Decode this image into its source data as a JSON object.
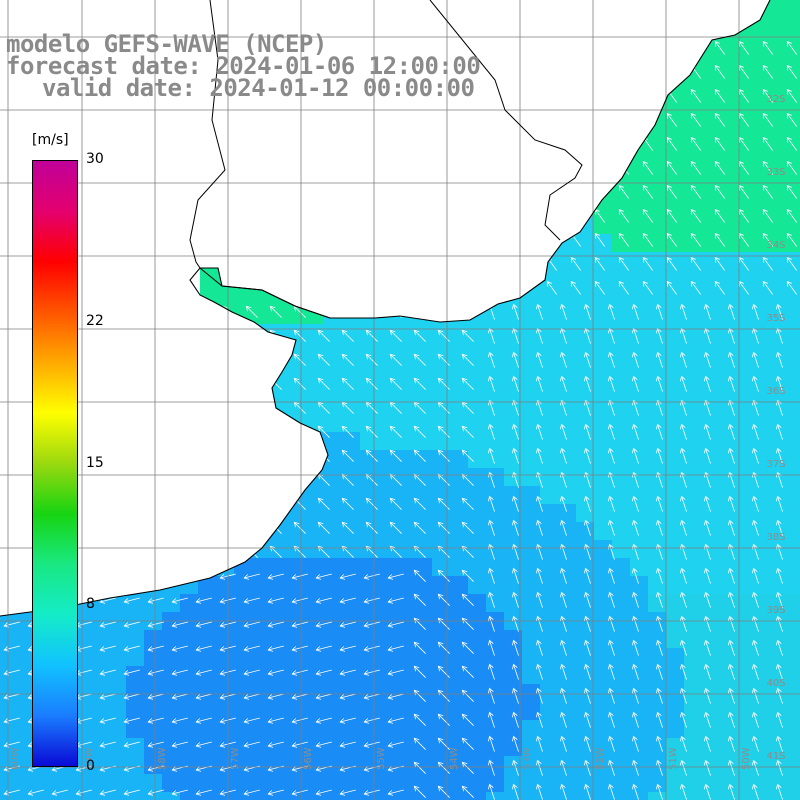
{
  "title": {
    "line1": "modelo GEFS-WAVE (NCEP)",
    "line2": "forecast date: 2024-01-06 12:00:00",
    "line3": "valid date: 2024-01-12 00:00:00"
  },
  "colorbar": {
    "units": "[m/s]",
    "ticks": [
      "30",
      "22",
      "15",
      "8",
      "0"
    ],
    "tick_values": [
      30,
      22,
      15,
      8,
      0
    ],
    "range": [
      0,
      30
    ],
    "stops": [
      "#0a0ad6",
      "#1a7dff",
      "#11c2ff",
      "#14ecc8",
      "#19e882",
      "#17d412",
      "#9ad80f",
      "#ffff00",
      "#ffaa00",
      "#ff5500",
      "#ff0000",
      "#e4006e",
      "#c00099"
    ]
  },
  "lat_labels": [
    "32S",
    "33S",
    "34S",
    "35S",
    "36S",
    "37S",
    "38S",
    "39S",
    "40S",
    "41S"
  ],
  "lon_labels": [
    "60W",
    "59W",
    "58W",
    "57W",
    "56W",
    "55W",
    "54W",
    "53W",
    "52W",
    "51W",
    "50W"
  ],
  "colors": {
    "ocean_light": "#1ed2f0",
    "ocean_mid": "#19b4f5",
    "ocean_low": "#1a8cf5",
    "nearshore_green": "#14e896",
    "coast": "#000000",
    "grid": "#7f7f7f",
    "arrow": "#ffffff",
    "title_text": "#8a8a8a"
  }
}
